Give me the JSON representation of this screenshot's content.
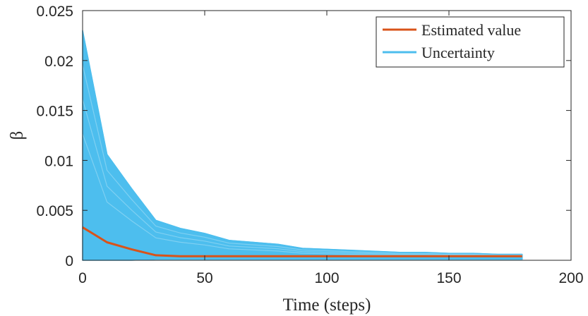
{
  "chart_data": {
    "type": "line",
    "title": "",
    "xlabel": "Time (steps)",
    "ylabel": "β",
    "xlim": [
      0,
      200
    ],
    "ylim": [
      0,
      0.025
    ],
    "x_ticks": [
      0,
      50,
      100,
      150,
      200
    ],
    "x_tick_labels": [
      "0",
      "50",
      "100",
      "150",
      "200"
    ],
    "y_ticks": [
      0,
      0.005,
      0.01,
      0.015,
      0.02,
      0.025
    ],
    "y_tick_labels": [
      "0",
      "0.005",
      "0.01",
      "0.015",
      "0.02",
      "0.025"
    ],
    "grid": false,
    "legend_position": "top-right",
    "series": [
      {
        "name": "Estimated value",
        "color": "#D95319",
        "x": [
          0,
          10,
          20,
          30,
          40,
          50,
          60,
          70,
          80,
          90,
          100,
          110,
          120,
          130,
          140,
          150,
          160,
          170,
          180
        ],
        "values": [
          0.0033,
          0.0018,
          0.0011,
          0.0005,
          0.0004,
          0.0004,
          0.0004,
          0.0004,
          0.0004,
          0.0004,
          0.0004,
          0.0004,
          0.0004,
          0.0004,
          0.0004,
          0.0004,
          0.0004,
          0.0004,
          0.0004
        ]
      },
      {
        "name": "Uncertainty",
        "color": "#4DBEEE",
        "x": [
          0,
          10,
          20,
          30,
          40,
          50,
          60,
          70,
          80,
          90,
          100,
          110,
          120,
          130,
          140,
          150,
          160,
          170,
          180
        ],
        "upper": [
          0.023,
          0.0106,
          0.0072,
          0.004,
          0.0032,
          0.0027,
          0.002,
          0.0018,
          0.0016,
          0.0012,
          0.0011,
          0.001,
          0.0009,
          0.0008,
          0.0008,
          0.0007,
          0.0007,
          0.0006,
          0.0006
        ],
        "lower": [
          0,
          0,
          0,
          0.0001,
          0.0001,
          0.0001,
          0.0001,
          0.0001,
          0.0001,
          0.0001,
          0.0001,
          0.0001,
          0.0001,
          0.0001,
          0.0001,
          0.0001,
          0.0001,
          0.0001,
          0.0001
        ]
      }
    ]
  }
}
